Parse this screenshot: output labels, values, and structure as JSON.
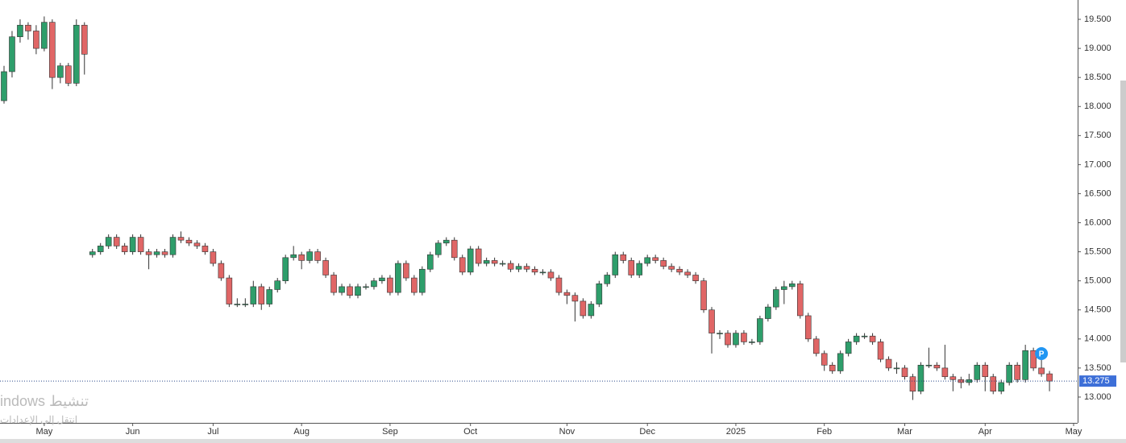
{
  "chart_data": {
    "type": "candlestick",
    "categories": [
      null,
      null,
      null,
      null,
      null,
      "May",
      null,
      null,
      null,
      null,
      null,
      null,
      null,
      null,
      null,
      null,
      "Jun",
      null,
      null,
      null,
      null,
      null,
      null,
      null,
      null,
      null,
      "Jul",
      null,
      null,
      null,
      null,
      null,
      null,
      null,
      null,
      null,
      null,
      "Aug",
      null,
      null,
      null,
      null,
      null,
      null,
      null,
      null,
      null,
      null,
      "Sep",
      null,
      null,
      null,
      null,
      null,
      null,
      null,
      null,
      null,
      "Oct",
      null,
      null,
      null,
      null,
      null,
      null,
      null,
      null,
      null,
      null,
      null,
      "Nov",
      null,
      null,
      null,
      null,
      null,
      null,
      null,
      null,
      null,
      "Dec",
      null,
      null,
      null,
      null,
      null,
      null,
      null,
      null,
      null,
      null,
      "2025",
      null,
      null,
      null,
      null,
      null,
      null,
      null,
      null,
      null,
      null,
      "Feb",
      null,
      null,
      null,
      null,
      null,
      null,
      null,
      null,
      null,
      "Mar",
      null,
      null,
      null,
      null,
      null,
      null,
      null,
      null,
      null,
      "Apr",
      null,
      null,
      null,
      null,
      null,
      null,
      null,
      null,
      null,
      null,
      "May"
    ],
    "open": [
      18.1,
      18.6,
      19.2,
      19.4,
      19.3,
      19.0,
      19.45,
      18.5,
      18.7,
      18.4,
      19.4,
      15.45,
      15.5,
      15.6,
      15.75,
      15.6,
      15.5,
      15.75,
      15.5,
      15.45,
      15.5,
      15.45,
      15.75,
      15.7,
      15.65,
      15.6,
      15.5,
      15.3,
      15.05,
      14.6,
      14.6,
      14.6,
      14.9,
      14.6,
      14.85,
      15.0,
      15.4,
      15.45,
      15.35,
      15.5,
      15.35,
      15.1,
      14.8,
      14.9,
      14.75,
      14.9,
      14.9,
      15.0,
      15.05,
      14.8,
      15.3,
      15.05,
      14.8,
      15.2,
      15.45,
      15.65,
      15.7,
      15.4,
      15.15,
      15.55,
      15.3,
      15.35,
      15.3,
      15.3,
      15.2,
      15.25,
      15.2,
      15.15,
      15.15,
      15.05,
      14.8,
      14.75,
      14.65,
      14.4,
      14.6,
      14.95,
      15.1,
      15.45,
      15.35,
      15.1,
      15.3,
      15.4,
      15.35,
      15.25,
      15.2,
      15.15,
      15.1,
      15.0,
      14.5,
      14.1,
      14.1,
      13.9,
      14.1,
      13.95,
      13.95,
      14.35,
      14.55,
      14.85,
      14.9,
      14.95,
      14.4,
      14.0,
      13.75,
      13.55,
      13.45,
      13.75,
      13.95,
      14.05,
      14.05,
      13.95,
      13.65,
      13.5,
      13.5,
      13.35,
      13.1,
      13.55,
      13.55,
      13.5,
      13.35,
      13.3,
      13.25,
      13.3,
      13.55,
      13.35,
      13.1,
      13.25,
      13.55,
      13.3,
      13.8,
      13.5,
      13.4,
      null,
      null,
      null
    ],
    "high": [
      18.7,
      19.3,
      19.5,
      19.45,
      19.4,
      19.55,
      19.5,
      18.75,
      18.75,
      19.5,
      19.45,
      15.55,
      15.65,
      15.8,
      15.8,
      15.65,
      15.8,
      15.8,
      15.55,
      15.55,
      15.55,
      15.8,
      15.85,
      15.75,
      15.7,
      15.65,
      15.55,
      15.35,
      15.1,
      14.7,
      14.7,
      15.0,
      14.95,
      14.9,
      15.05,
      15.45,
      15.6,
      15.5,
      15.55,
      15.55,
      15.4,
      15.15,
      14.95,
      14.95,
      14.95,
      14.95,
      15.05,
      15.1,
      15.1,
      15.35,
      15.35,
      15.1,
      15.25,
      15.5,
      15.7,
      15.75,
      15.75,
      15.45,
      15.6,
      15.6,
      15.4,
      15.4,
      15.35,
      15.35,
      15.3,
      15.3,
      15.25,
      15.2,
      15.2,
      15.1,
      14.85,
      14.8,
      14.7,
      14.65,
      15.0,
      15.15,
      15.5,
      15.5,
      15.4,
      15.35,
      15.45,
      15.45,
      15.4,
      15.3,
      15.25,
      15.2,
      15.15,
      15.05,
      14.55,
      14.15,
      14.15,
      14.15,
      14.15,
      14.0,
      14.4,
      14.6,
      14.9,
      15.0,
      15.0,
      15.0,
      14.45,
      14.05,
      13.8,
      13.6,
      13.8,
      14.0,
      14.1,
      14.1,
      14.1,
      14.0,
      13.7,
      13.6,
      13.55,
      13.4,
      13.6,
      13.85,
      13.6,
      13.9,
      13.4,
      13.35,
      13.4,
      13.6,
      13.6,
      13.4,
      13.3,
      13.6,
      13.6,
      13.9,
      13.85,
      13.65,
      13.45,
      null,
      null,
      null
    ],
    "low": [
      18.05,
      18.5,
      19.1,
      19.15,
      18.9,
      18.95,
      18.3,
      18.4,
      18.35,
      18.35,
      18.55,
      15.4,
      15.45,
      15.55,
      15.55,
      15.45,
      15.45,
      15.45,
      15.2,
      15.4,
      15.4,
      15.4,
      15.65,
      15.6,
      15.55,
      15.45,
      15.25,
      15.0,
      14.55,
      14.55,
      14.55,
      14.55,
      14.5,
      14.55,
      14.8,
      14.95,
      15.35,
      15.2,
      15.3,
      15.3,
      15.05,
      14.75,
      14.75,
      14.7,
      14.7,
      14.85,
      14.85,
      14.95,
      14.75,
      14.75,
      15.0,
      14.75,
      14.75,
      15.15,
      15.4,
      15.6,
      15.35,
      15.1,
      15.1,
      15.25,
      15.25,
      15.25,
      15.25,
      15.15,
      15.15,
      15.15,
      15.1,
      15.1,
      15.0,
      14.75,
      14.6,
      14.3,
      14.35,
      14.35,
      14.55,
      14.9,
      15.05,
      15.3,
      15.05,
      15.05,
      15.25,
      15.3,
      15.2,
      15.15,
      15.1,
      15.05,
      14.95,
      14.45,
      13.75,
      14.0,
      13.85,
      13.85,
      13.9,
      13.9,
      13.9,
      14.3,
      14.5,
      14.6,
      14.85,
      14.35,
      13.95,
      13.7,
      13.45,
      13.4,
      13.4,
      13.7,
      13.9,
      14.0,
      13.9,
      13.6,
      13.45,
      13.4,
      13.3,
      12.95,
      13.05,
      13.5,
      13.45,
      13.3,
      13.1,
      13.15,
      13.2,
      13.25,
      13.1,
      13.05,
      13.05,
      13.2,
      13.25,
      13.25,
      13.45,
      13.35,
      13.1,
      null,
      null,
      null
    ],
    "close": [
      18.6,
      19.2,
      19.4,
      19.3,
      19.0,
      19.45,
      18.5,
      18.7,
      18.4,
      19.4,
      18.9,
      15.5,
      15.6,
      15.75,
      15.6,
      15.5,
      15.75,
      15.5,
      15.45,
      15.5,
      15.45,
      15.75,
      15.7,
      15.65,
      15.6,
      15.5,
      15.3,
      15.05,
      14.6,
      14.6,
      14.6,
      14.9,
      14.6,
      14.85,
      15.0,
      15.4,
      15.45,
      15.35,
      15.5,
      15.35,
      15.1,
      14.8,
      14.9,
      14.75,
      14.9,
      14.9,
      15.0,
      15.05,
      14.8,
      15.3,
      15.05,
      14.8,
      15.2,
      15.45,
      15.65,
      15.7,
      15.4,
      15.15,
      15.55,
      15.3,
      15.35,
      15.3,
      15.3,
      15.2,
      15.25,
      15.2,
      15.15,
      15.15,
      15.05,
      14.8,
      14.75,
      14.65,
      14.4,
      14.6,
      14.95,
      15.1,
      15.45,
      15.35,
      15.1,
      15.3,
      15.4,
      15.35,
      15.25,
      15.2,
      15.15,
      15.1,
      15.0,
      14.5,
      14.1,
      14.1,
      13.9,
      14.1,
      13.95,
      13.95,
      14.35,
      14.55,
      14.85,
      14.9,
      14.95,
      14.4,
      14.0,
      13.75,
      13.55,
      13.45,
      13.75,
      13.95,
      14.05,
      14.05,
      13.95,
      13.65,
      13.5,
      13.5,
      13.35,
      13.1,
      13.55,
      13.55,
      13.5,
      13.35,
      13.3,
      13.25,
      13.3,
      13.55,
      13.35,
      13.1,
      13.25,
      13.55,
      13.3,
      13.8,
      13.5,
      13.4,
      13.275,
      null,
      null,
      null
    ],
    "up_color": "#2e9e6b",
    "down_color": "#e06666",
    "ylim": [
      12.556,
      19.833
    ],
    "yticks": [
      {
        "value": 13,
        "label": "13.000"
      },
      {
        "value": 13.5,
        "label": "13.500"
      },
      {
        "value": 14,
        "label": "14.000"
      },
      {
        "value": 14.5,
        "label": "14.500"
      },
      {
        "value": 15,
        "label": "15.000"
      },
      {
        "value": 15.5,
        "label": "15.500"
      },
      {
        "value": 16,
        "label": "16.000"
      },
      {
        "value": 16.5,
        "label": "16.500"
      },
      {
        "value": 17,
        "label": "17.000"
      },
      {
        "value": 17.5,
        "label": "17.500"
      },
      {
        "value": 18,
        "label": "18.000"
      },
      {
        "value": 18.5,
        "label": "18.500"
      },
      {
        "value": 19,
        "label": "19.000"
      },
      {
        "value": 19.5,
        "label": "19.500"
      }
    ],
    "grid": false,
    "last_price": 13.275,
    "annotation": "P",
    "watermark": [
      "indows تنشيط",
      "انتقل إلى الإعدادات"
    ]
  }
}
